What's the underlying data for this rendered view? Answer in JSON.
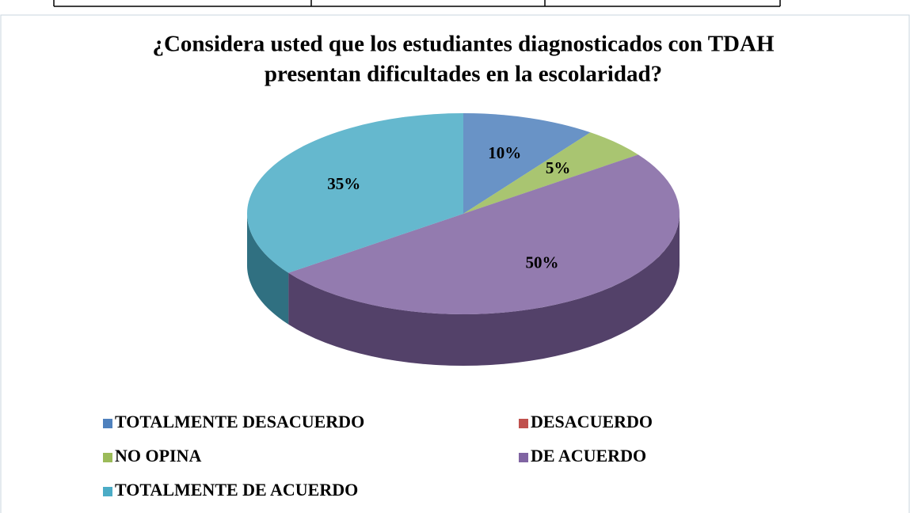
{
  "chart_data": {
    "type": "pie",
    "title": [
      "¿Considera usted que los estudiantes diagnosticados con TDAH",
      "presentan dificultades en la escolaridad?"
    ],
    "categories": [
      "TOTALMENTE DESACUERDO",
      "DESACUERDO",
      "NO OPINA",
      "DE ACUERDO",
      "TOTALMENTE DE ACUERDO"
    ],
    "values": [
      10,
      0,
      5,
      50,
      35
    ],
    "value_labels": [
      "10%",
      null,
      "5%",
      "50%",
      "35%"
    ],
    "colors": [
      "#4f81bd",
      "#c0504d",
      "#9bbb59",
      "#8064a2",
      "#4bacc6"
    ],
    "legend": "bottom"
  }
}
